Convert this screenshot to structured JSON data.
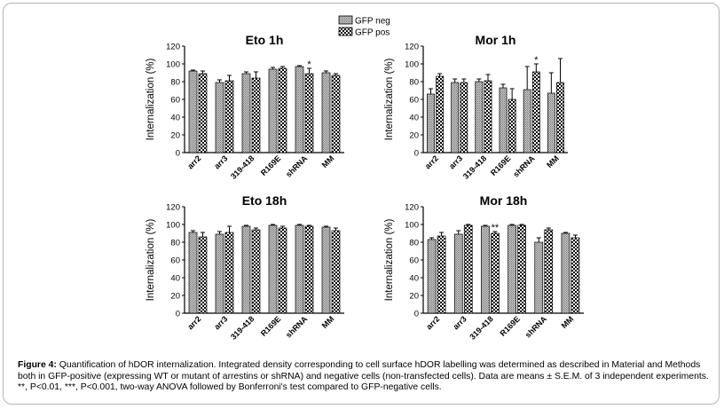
{
  "legend": {
    "items": [
      "GFP neg",
      "GFP pos"
    ]
  },
  "caption": {
    "label": "Figure 4:",
    "text": " Quantification of hDOR internalization. Integrated density corresponding to cell surface hDOR labelling was determined as described in Material and Methods both in GFP-positive (expressing WT or mutant of arrestins or shRNA) and negative cells (non-transfected cells). Data are means ± S.E.M. of 3 independent experiments. **, P<0.01, ***, P<0.001, two-way ANOVA followed by Bonferroni's test compared to GFP-negative cells."
  },
  "chart_data": [
    {
      "type": "bar",
      "title": "Eto 1h",
      "ylabel": "Internalization (%)",
      "ylim": [
        0,
        120
      ],
      "yticks": [
        0,
        20,
        40,
        60,
        80,
        100,
        120
      ],
      "categories": [
        "arr2",
        "arr3",
        "319-418",
        "R169E",
        "shRNA",
        "MM"
      ],
      "series": [
        {
          "name": "GFP neg",
          "values": [
            92,
            79,
            89,
            94,
            97,
            90
          ],
          "errors": [
            1,
            3,
            2,
            2,
            1,
            2
          ]
        },
        {
          "name": "GFP pos",
          "values": [
            89,
            81,
            84,
            95,
            89,
            87
          ],
          "errors": [
            3,
            6,
            7,
            2,
            6,
            2
          ]
        }
      ],
      "annotations": [
        {
          "category": "shRNA",
          "series": "GFP pos",
          "text": "*"
        }
      ]
    },
    {
      "type": "bar",
      "title": "Mor 1h",
      "ylabel": "Internalization (%)",
      "ylim": [
        0,
        120
      ],
      "yticks": [
        0,
        20,
        40,
        60,
        80,
        100,
        120
      ],
      "categories": [
        "arr2",
        "arr3",
        "319-418",
        "R169E",
        "shRNA",
        "MM"
      ],
      "series": [
        {
          "name": "GFP neg",
          "values": [
            66,
            79,
            80,
            73,
            71,
            67
          ],
          "errors": [
            6,
            4,
            3,
            4,
            26,
            23
          ]
        },
        {
          "name": "GFP pos",
          "values": [
            86,
            79,
            81,
            60,
            91,
            79
          ],
          "errors": [
            3,
            4,
            7,
            12,
            9,
            27
          ]
        }
      ],
      "annotations": [
        {
          "category": "shRNA",
          "series": "GFP pos",
          "text": "*"
        }
      ]
    },
    {
      "type": "bar",
      "title": "Eto 18h",
      "ylabel": "Internalization (%)",
      "ylim": [
        0,
        120
      ],
      "yticks": [
        0,
        20,
        40,
        60,
        80,
        100,
        120
      ],
      "categories": [
        "arr2",
        "arr3",
        "319-418",
        "R169E",
        "shRNA",
        "MM"
      ],
      "series": [
        {
          "name": "GFP neg",
          "values": [
            91,
            89,
            98,
            99,
            99,
            97
          ],
          "errors": [
            2,
            3,
            1,
            1,
            1,
            1
          ]
        },
        {
          "name": "GFP pos",
          "values": [
            86,
            91,
            94,
            96,
            98,
            93
          ],
          "errors": [
            5,
            7,
            2,
            2,
            1,
            3
          ]
        }
      ],
      "annotations": []
    },
    {
      "type": "bar",
      "title": "Mor 18h",
      "ylabel": "Internalization (%)",
      "ylim": [
        0,
        120
      ],
      "yticks": [
        0,
        20,
        40,
        60,
        80,
        100,
        120
      ],
      "categories": [
        "arr2",
        "arr3",
        "319-418",
        "R169E",
        "shRNA",
        "MM"
      ],
      "series": [
        {
          "name": "GFP neg",
          "values": [
            83,
            89,
            98,
            99,
            80,
            90
          ],
          "errors": [
            2,
            4,
            1,
            1,
            5,
            1
          ]
        },
        {
          "name": "GFP pos",
          "values": [
            87,
            99,
            90,
            99,
            94,
            85
          ],
          "errors": [
            4,
            1,
            2,
            1,
            2,
            3
          ]
        }
      ],
      "annotations": [
        {
          "category": "319-418",
          "series": "GFP pos",
          "text": "**"
        }
      ]
    }
  ]
}
